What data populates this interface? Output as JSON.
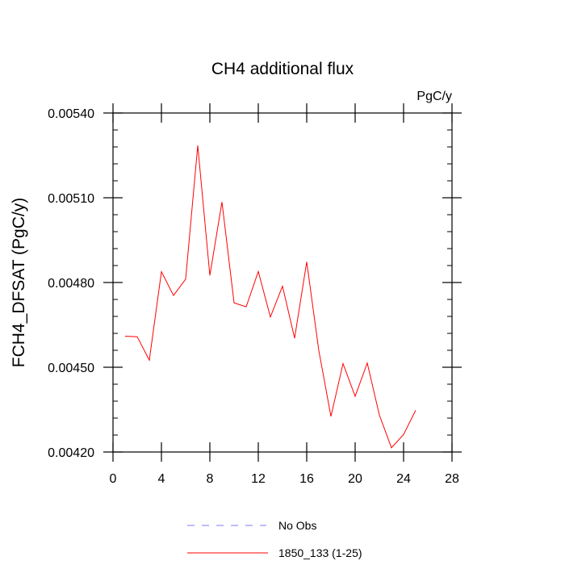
{
  "chart_data": {
    "type": "line",
    "title": "CH4 additional flux",
    "units": "PgC/y",
    "ylabel": "FCH4_DFSAT  (PgC/y)",
    "xlabel": "",
    "xlim": [
      0,
      28
    ],
    "ylim": [
      0.0042,
      0.0054
    ],
    "x_ticks": [
      0,
      4,
      8,
      12,
      16,
      20,
      24,
      28
    ],
    "x_tick_labels": [
      "0",
      "4",
      "8",
      "12",
      "16",
      "20",
      "24",
      "28"
    ],
    "y_ticks": [
      0.0042,
      0.0045,
      0.0048,
      0.0051,
      0.0054
    ],
    "y_tick_labels": [
      "0.00420",
      "0.00450",
      "0.00480",
      "0.00510",
      "0.00540"
    ],
    "grid": false,
    "legend": {
      "placement": "bottom",
      "entries": [
        {
          "name": "No Obs",
          "color": "#7b7bff",
          "style": "dashed"
        },
        {
          "name": "1850_133 (1-25)",
          "color": "#ff0000",
          "style": "solid"
        }
      ]
    },
    "series": [
      {
        "name": "1850_133 (1-25)",
        "color": "#ff0000",
        "x": [
          1,
          2,
          3,
          4,
          5,
          6,
          7,
          8,
          9,
          10,
          11,
          12,
          13,
          14,
          15,
          16,
          17,
          18,
          19,
          20,
          21,
          22,
          23,
          24,
          25
        ],
        "values": [
          0.00461,
          0.004608,
          0.004525,
          0.004838,
          0.004754,
          0.004812,
          0.005285,
          0.004825,
          0.005085,
          0.004728,
          0.004714,
          0.004839,
          0.004678,
          0.004787,
          0.004603,
          0.004873,
          0.004559,
          0.004326,
          0.004513,
          0.004397,
          0.004515,
          0.004331,
          0.004215,
          0.004262,
          0.004348
        ]
      }
    ]
  }
}
